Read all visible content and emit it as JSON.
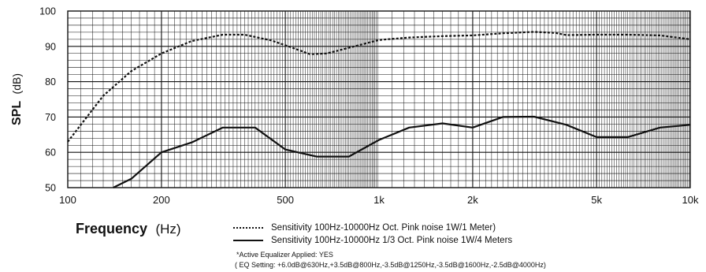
{
  "chart_data": {
    "type": "line",
    "xlabel_bold": "Frequency",
    "xlabel_unit": "(Hz)",
    "ylabel_bold": "SPL",
    "ylabel_unit": "(dB)",
    "x_scale": "log",
    "xlim": [
      100,
      10000
    ],
    "ylim": [
      50,
      100
    ],
    "grid": true,
    "x_ticks": [
      {
        "value": 100,
        "label": "100"
      },
      {
        "value": 200,
        "label": "200"
      },
      {
        "value": 500,
        "label": "500"
      },
      {
        "value": 1000,
        "label": "1k"
      },
      {
        "value": 2000,
        "label": "2k"
      },
      {
        "value": 5000,
        "label": "5k"
      },
      {
        "value": 10000,
        "label": "10k"
      }
    ],
    "y_ticks": [
      {
        "value": 50,
        "label": "50"
      },
      {
        "value": 60,
        "label": "60"
      },
      {
        "value": 70,
        "label": "70"
      },
      {
        "value": 80,
        "label": "80"
      },
      {
        "value": 90,
        "label": "90"
      },
      {
        "value": 100,
        "label": "100"
      }
    ],
    "series": [
      {
        "name": "Sensitivity 100Hz-10000Hz Oct. Pink noise 1W/1 Meter)",
        "style": "dotted",
        "color": "#111111",
        "points": [
          [
            100,
            63
          ],
          [
            130,
            76
          ],
          [
            160,
            83
          ],
          [
            200,
            88
          ],
          [
            250,
            91.5
          ],
          [
            315,
            93.3
          ],
          [
            370,
            93.3
          ],
          [
            450,
            91.7
          ],
          [
            520,
            89.8
          ],
          [
            600,
            87.8
          ],
          [
            680,
            88
          ],
          [
            800,
            89.6
          ],
          [
            1000,
            91.8
          ],
          [
            1250,
            92.5
          ],
          [
            1600,
            92.9
          ],
          [
            2000,
            93.1
          ],
          [
            2500,
            93.7
          ],
          [
            3150,
            94.1
          ],
          [
            3700,
            93.8
          ],
          [
            4000,
            93.2
          ],
          [
            5000,
            93.3
          ],
          [
            6300,
            93.3
          ],
          [
            8000,
            93.1
          ],
          [
            10000,
            92
          ]
        ]
      },
      {
        "name": "Sensitivity 100Hz-10000Hz 1/3 Oct. Pink noise 1W/4 Meters",
        "style": "solid",
        "color": "#111111",
        "points": [
          [
            140,
            50
          ],
          [
            160,
            52.5
          ],
          [
            200,
            60
          ],
          [
            250,
            62.8
          ],
          [
            315,
            67
          ],
          [
            400,
            67
          ],
          [
            500,
            60.8
          ],
          [
            630,
            58.8
          ],
          [
            800,
            58.8
          ],
          [
            1000,
            63.5
          ],
          [
            1250,
            67
          ],
          [
            1600,
            68.2
          ],
          [
            2000,
            67
          ],
          [
            2500,
            70
          ],
          [
            3150,
            70.1
          ],
          [
            4000,
            67.8
          ],
          [
            5000,
            64.3
          ],
          [
            6300,
            64.3
          ],
          [
            8000,
            67
          ],
          [
            10000,
            67.8
          ]
        ]
      }
    ],
    "notes": [
      "*Active Equalizer Applied: YES",
      "( EQ Setting: +6.0dB@630Hz,+3.5dB@800Hz,-3.5dB@1250Hz,-3.5dB@1600Hz,-2.5dB@4000Hz)"
    ]
  }
}
